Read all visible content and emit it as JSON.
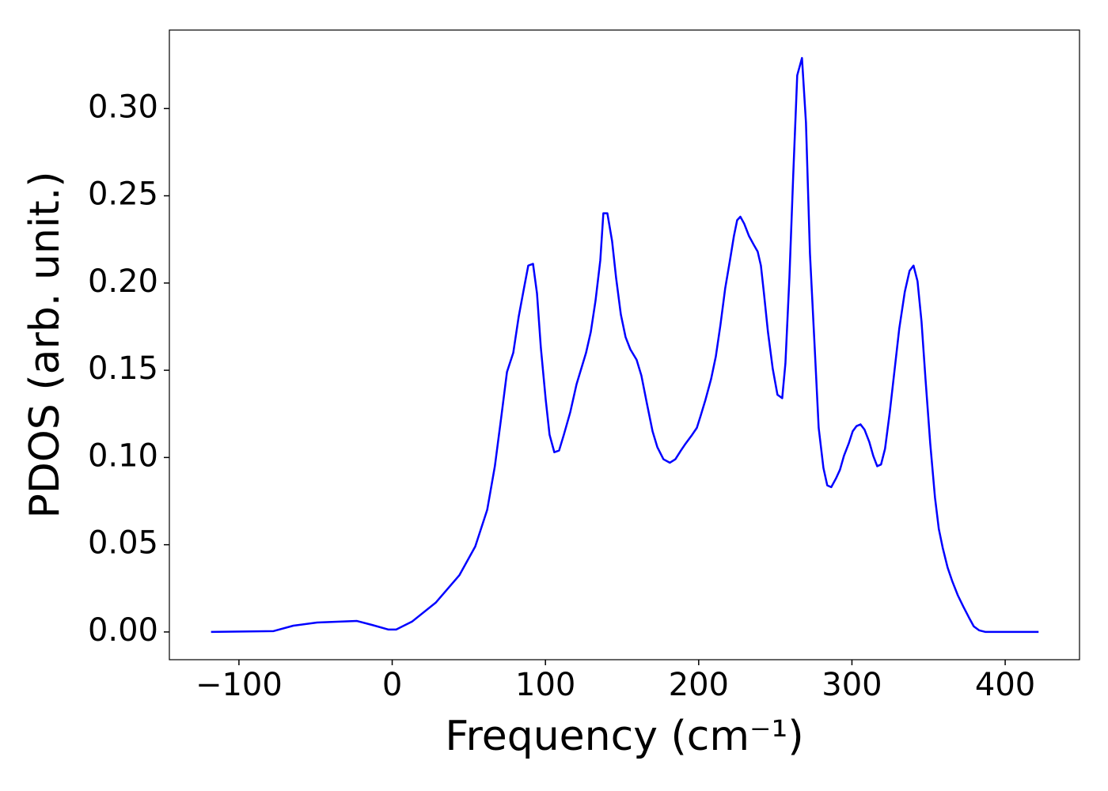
{
  "chart_data": {
    "type": "line",
    "xlabel": "Frequency (cm⁻¹)",
    "ylabel": "PDOS (arb. unit.)",
    "color": "#0000ff",
    "x": [
      -118.2,
      -77.4,
      -64.5,
      -49,
      -23,
      -13,
      -2.6,
      2.6,
      12.9,
      28.4,
      43.9,
      54.2,
      62,
      67,
      71,
      74.9,
      79,
      82.6,
      86.2,
      88.8,
      91.9,
      94.5,
      97,
      100.2,
      102.7,
      105.8,
      108.9,
      112,
      116.2,
      120.3,
      126.5,
      129.6,
      132.7,
      135.8,
      137.8,
      140.4,
      143.5,
      146.1,
      149.2,
      152.3,
      155.4,
      159.5,
      162.6,
      166.2,
      169.9,
      173,
      177,
      181.2,
      184.8,
      188.4,
      191.5,
      195.7,
      198.8,
      201.3,
      204.4,
      208.1,
      211.2,
      214.2,
      217.3,
      220.4,
      223,
      225.1,
      227.2,
      229.7,
      232.8,
      235.9,
      238.5,
      240.6,
      242.6,
      245.2,
      248.3,
      251.4,
      254.5,
      256.6,
      259.2,
      261.7,
      264.3,
      267.4,
      270,
      272.6,
      275.7,
      278.3,
      281.4,
      283.9,
      286.5,
      289.6,
      292.2,
      294.8,
      297.9,
      300.5,
      303,
      305.6,
      308.2,
      311.3,
      313.9,
      316.5,
      319,
      321.6,
      324.7,
      327.8,
      330.9,
      334.5,
      337.6,
      340.2,
      342.8,
      345.4,
      348,
      351.1,
      354.2,
      356.7,
      359.3,
      362.4,
      365.5,
      369.1,
      372.7,
      376.4,
      379.5,
      383.1,
      387.2,
      421.8
    ],
    "values": [
      0,
      0.0005,
      0.0036,
      0.0054,
      0.0063,
      0.004,
      0.0014,
      0.0014,
      0.0059,
      0.0168,
      0.0326,
      0.049,
      0.07,
      0.095,
      0.122,
      0.149,
      0.16,
      0.181,
      0.198,
      0.21,
      0.211,
      0.194,
      0.163,
      0.133,
      0.113,
      0.103,
      0.104,
      0.113,
      0.126,
      0.142,
      0.16,
      0.172,
      0.19,
      0.213,
      0.24,
      0.24,
      0.224,
      0.203,
      0.182,
      0.169,
      0.162,
      0.156,
      0.147,
      0.131,
      0.115,
      0.106,
      0.099,
      0.097,
      0.099,
      0.104,
      0.108,
      0.113,
      0.117,
      0.124,
      0.133,
      0.145,
      0.158,
      0.176,
      0.197,
      0.213,
      0.227,
      0.236,
      0.238,
      0.234,
      0.227,
      0.222,
      0.218,
      0.21,
      0.194,
      0.172,
      0.151,
      0.136,
      0.134,
      0.154,
      0.203,
      0.262,
      0.319,
      0.329,
      0.292,
      0.217,
      0.163,
      0.117,
      0.094,
      0.084,
      0.083,
      0.088,
      0.093,
      0.101,
      0.108,
      0.115,
      0.118,
      0.119,
      0.116,
      0.109,
      0.101,
      0.095,
      0.096,
      0.105,
      0.126,
      0.15,
      0.174,
      0.195,
      0.207,
      0.21,
      0.201,
      0.178,
      0.145,
      0.108,
      0.077,
      0.059,
      0.048,
      0.037,
      0.029,
      0.021,
      0.0145,
      0.0082,
      0.0032,
      0.0009,
      0,
      0
    ],
    "xlim": [
      -145.4,
      448.5
    ],
    "ylim": [
      -0.0159,
      0.345
    ],
    "xticks": [
      {
        "value": -100,
        "label": "−100"
      },
      0,
      100,
      200,
      300,
      400
    ],
    "yticks": [
      {
        "value": 0,
        "label": "0.00"
      },
      0.05,
      {
        "value": 0.1,
        "label": "0.10"
      },
      0.15,
      {
        "value": 0.2,
        "label": "0.20"
      },
      0.25,
      {
        "value": 0.3,
        "label": "0.30"
      }
    ]
  }
}
